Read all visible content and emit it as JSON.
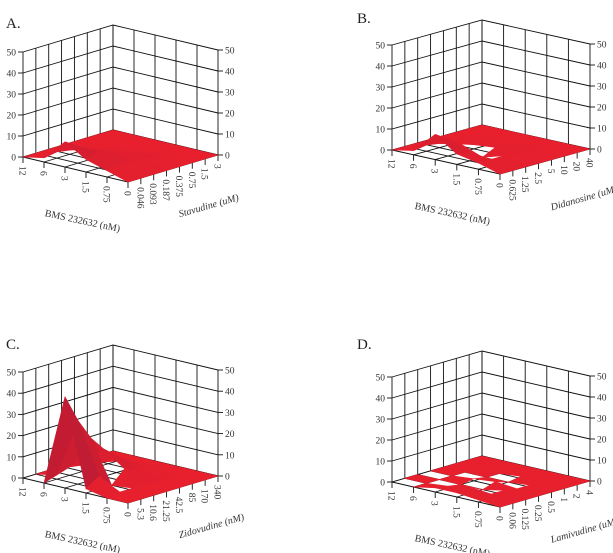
{
  "figure": {
    "panels": [
      "A.",
      "B.",
      "C.",
      "D."
    ]
  },
  "chart_data": [
    {
      "type": "surface3d",
      "panel_label": "A.",
      "x_title": "BMS 232632 (nM)",
      "x_ticks": [
        "12",
        "6",
        "3",
        "1.5",
        "0.75",
        "0"
      ],
      "y_title": "Stavudine (uM)",
      "y_ticks": [
        "0.046",
        "0.093",
        "0.187",
        "0.375",
        "0.75",
        "1.5",
        "3"
      ],
      "z_ticks": [
        "0",
        "10",
        "20",
        "30",
        "40",
        "50"
      ],
      "zlim": [
        0,
        50
      ],
      "color": "#e8202e",
      "z_values": [
        [
          0,
          0,
          0,
          0,
          0,
          0,
          0,
          0
        ],
        [
          2,
          3,
          2,
          1,
          0,
          0,
          0,
          0
        ],
        [
          12,
          8,
          5,
          3,
          1,
          0,
          0,
          0
        ],
        [
          6,
          8,
          5,
          3,
          2,
          1,
          0,
          0
        ],
        [
          3,
          4,
          4,
          3,
          2,
          1,
          0,
          0
        ],
        [
          0,
          0,
          0,
          0,
          0,
          0,
          0,
          0
        ]
      ]
    },
    {
      "type": "surface3d",
      "panel_label": "B.",
      "x_title": "BMS 232632 (nM)",
      "x_ticks": [
        "12",
        "6",
        "3",
        "1.5",
        "0.75",
        "0"
      ],
      "y_title": "Didanosine (uM)",
      "y_ticks": [
        "0.625",
        "1.25",
        "2.5",
        "5",
        "10",
        "20",
        "40"
      ],
      "z_ticks": [
        "0",
        "10",
        "20",
        "30",
        "40",
        "50"
      ],
      "zlim": [
        0,
        50
      ],
      "color": "#e8202e",
      "z_values": [
        [
          0,
          0,
          0,
          0,
          0,
          0,
          0,
          0
        ],
        [
          2,
          3,
          2,
          1,
          1,
          0,
          0,
          0
        ],
        [
          12,
          8,
          4,
          2,
          1,
          0,
          0,
          0
        ],
        [
          5,
          4,
          -1,
          3,
          2,
          1,
          0,
          0
        ],
        [
          3,
          3,
          3,
          2,
          2,
          1,
          0,
          0
        ],
        [
          0,
          0,
          0,
          0,
          0,
          0,
          0,
          0
        ]
      ]
    },
    {
      "type": "surface3d",
      "panel_label": "C.",
      "x_title": "BMS 232632 (nM)",
      "x_ticks": [
        "12",
        "6",
        "3",
        "1.5",
        "0.75",
        "0"
      ],
      "y_title": "Zidovudine (nM)",
      "y_ticks": [
        "5.3",
        "10.6",
        "21.25",
        "42.5",
        "85",
        "170",
        "340"
      ],
      "z_ticks": [
        "0",
        "10",
        "20",
        "30",
        "40",
        "50"
      ],
      "zlim": [
        0,
        50
      ],
      "color": "#e8202e",
      "z_values": [
        [
          0,
          0,
          0,
          0,
          0,
          0,
          0,
          0
        ],
        [
          -1,
          2,
          4,
          3,
          2,
          1,
          0,
          0
        ],
        [
          43,
          30,
          20,
          13,
          8,
          4,
          1,
          0
        ],
        [
          2,
          6,
          -2,
          6,
          4,
          2,
          1,
          0
        ],
        [
          0,
          1,
          1,
          1,
          1,
          0,
          0,
          0
        ],
        [
          0,
          0,
          0,
          0,
          0,
          0,
          0,
          0
        ]
      ]
    },
    {
      "type": "surface3d",
      "panel_label": "D.",
      "x_title": "BMS 232632 (nM)",
      "x_ticks": [
        "12",
        "6",
        "3",
        "1.5",
        "0.75",
        "0"
      ],
      "y_title": "Lamivudine (uM)",
      "y_ticks": [
        "0.06",
        "0.125",
        "0.25",
        "0.5",
        "1",
        "2",
        "4"
      ],
      "z_ticks": [
        "0",
        "10",
        "20",
        "30",
        "40",
        "50"
      ],
      "zlim": [
        0,
        50
      ],
      "color": "#e8202e",
      "z_values": [
        [
          0,
          0,
          0,
          0,
          0,
          0,
          0,
          0
        ],
        [
          0,
          -2,
          -3,
          -2,
          0,
          0,
          0,
          0
        ],
        [
          2,
          1,
          -2,
          1,
          -2,
          0,
          0,
          0
        ],
        [
          2,
          3,
          -3,
          2,
          -2,
          1,
          0,
          0
        ],
        [
          1,
          2,
          2,
          1,
          1,
          0,
          0,
          0
        ],
        [
          0,
          0,
          0,
          0,
          0,
          0,
          0,
          0
        ]
      ]
    }
  ]
}
